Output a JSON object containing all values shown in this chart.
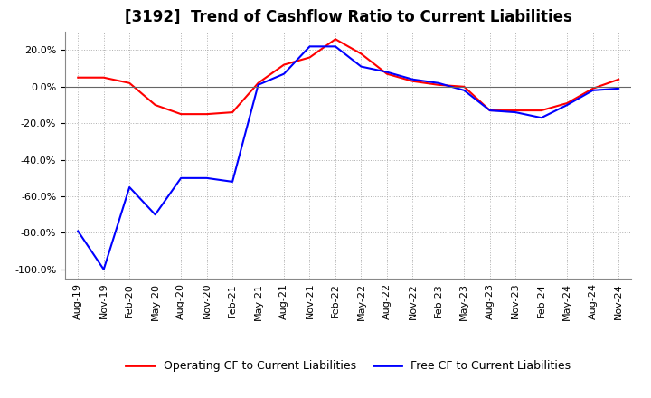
{
  "title": "[3192]  Trend of Cashflow Ratio to Current Liabilities",
  "x_labels": [
    "Aug-19",
    "Nov-19",
    "Feb-20",
    "May-20",
    "Aug-20",
    "Nov-20",
    "Feb-21",
    "May-21",
    "Aug-21",
    "Nov-21",
    "Feb-22",
    "May-22",
    "Aug-22",
    "Nov-22",
    "Feb-23",
    "May-23",
    "Aug-23",
    "Nov-23",
    "Feb-24",
    "May-24",
    "Aug-24",
    "Nov-24"
  ],
  "operating_cf": [
    0.05,
    0.05,
    0.02,
    -0.1,
    -0.15,
    -0.15,
    -0.14,
    0.02,
    0.12,
    0.16,
    0.26,
    0.18,
    0.07,
    0.03,
    0.01,
    0.0,
    -0.13,
    -0.13,
    -0.13,
    -0.09,
    -0.01,
    0.04
  ],
  "free_cf": [
    -0.79,
    -1.0,
    -0.55,
    -0.7,
    -0.5,
    -0.5,
    -0.52,
    0.01,
    0.07,
    0.22,
    0.22,
    0.11,
    0.08,
    0.04,
    0.02,
    -0.02,
    -0.13,
    -0.14,
    -0.17,
    -0.1,
    -0.02,
    -0.01
  ],
  "operating_color": "#ff0000",
  "free_color": "#0000ff",
  "ylim": [
    -1.05,
    0.3
  ],
  "yticks": [
    -1.0,
    -0.8,
    -0.6,
    -0.4,
    -0.2,
    0.0,
    0.2
  ],
  "background_color": "#ffffff",
  "grid_color": "#b0b0b0",
  "title_fontsize": 12,
  "legend_fontsize": 9,
  "tick_fontsize": 8
}
